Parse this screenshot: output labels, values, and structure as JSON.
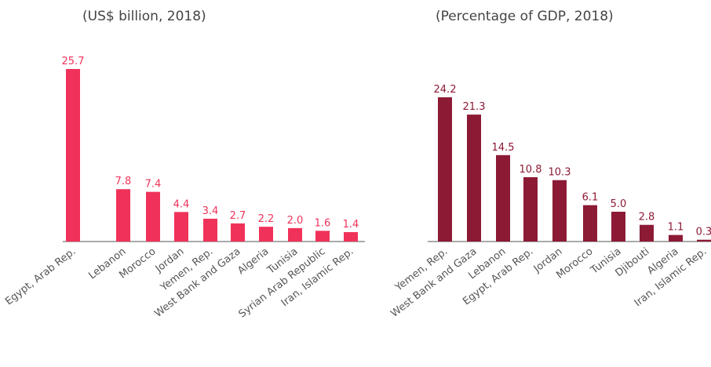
{
  "chart_data": [
    {
      "type": "bar",
      "title": "(US$ billion, 2018)",
      "categories": [
        "Egypt, Arab Rep.",
        "Lebanon",
        "Morocco",
        "Jordan",
        "Yemen, Rep.",
        "West Bank and Gaza",
        "Algeria",
        "Tunisia",
        "Syrian Arab Republic",
        "Iran, Islamic Rep."
      ],
      "values": [
        25.7,
        7.8,
        7.4,
        4.4,
        3.4,
        2.7,
        2.2,
        2.0,
        1.6,
        1.4
      ],
      "value_labels": [
        "25.7",
        "7.8",
        "7.4",
        "4.4",
        "3.4",
        "2.7",
        "2.2",
        "2.0",
        "1.6",
        "1.4"
      ],
      "color": "#f0325a"
    },
    {
      "type": "bar",
      "title": "(Percentage of GDP, 2018)",
      "categories": [
        "Yemen, Rep.",
        "West Bank and Gaza",
        "Lebanon",
        "Egypt, Arab Rep.",
        "Jordan",
        "Morocco",
        "Tunisia",
        "Djibouti",
        "Algeria",
        "Iran, Islamic Rep."
      ],
      "values": [
        24.2,
        21.3,
        14.5,
        10.8,
        10.3,
        6.1,
        5.0,
        2.8,
        1.1,
        0.3
      ],
      "value_labels": [
        "24.2",
        "21.3",
        "14.5",
        "10.8",
        "10.3",
        "6.1",
        "5.0",
        "2.8",
        "1.1",
        "0.3"
      ],
      "color": "#8c1a35"
    }
  ]
}
